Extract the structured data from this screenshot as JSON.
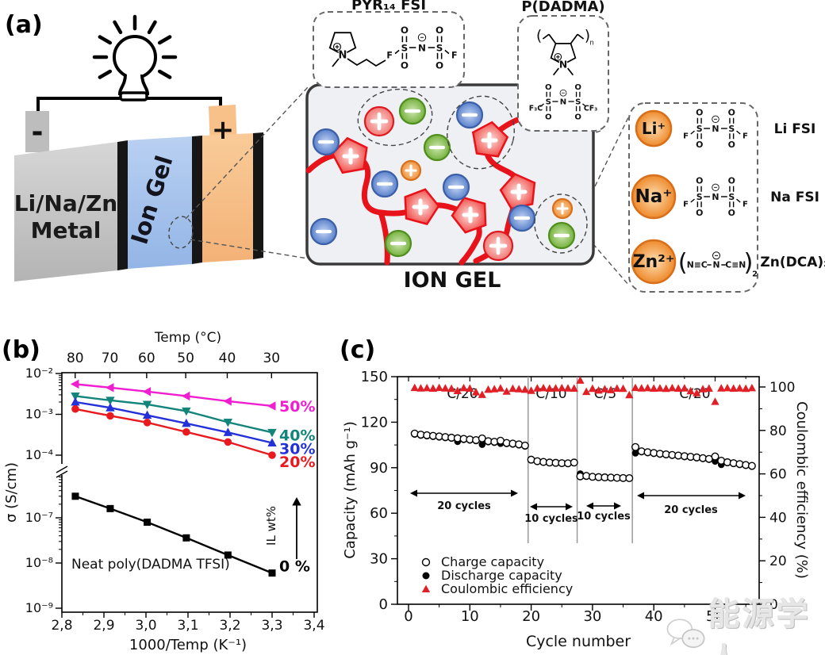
{
  "labels": {
    "a": "(a)",
    "b": "(b)",
    "c": "(c)"
  },
  "watermark": {
    "text": "能源学人"
  },
  "panel_a": {
    "battery": {
      "negative": "-",
      "positive": "+",
      "electrode_line1": "Li/Na/Zn",
      "electrode_line2": "Metal",
      "separator": "Ion Gel"
    },
    "pyr_title": "PYR₁₄ FSI",
    "pdadma_title": "P(DADMA)",
    "iongel_label": "ION GEL",
    "ion_rows": [
      {
        "ion": "Li⁺",
        "label": "Li FSI"
      },
      {
        "ion": "Na⁺",
        "label": "Na FSI"
      },
      {
        "ion": "Zn²⁺",
        "label": "Zn(DCA)₂"
      }
    ],
    "ion_signs": {
      "plus": "+",
      "minus": "−"
    },
    "structures": {
      "atom_o": "O",
      "atom_s": "S",
      "atom_n": "N",
      "fsi_left": "F",
      "fsi_right": "F",
      "tfsi_left": "F₃C",
      "tfsi_right": "CF₃",
      "dca_left": "N≡C",
      "dca_mid": "N",
      "dca_right": "C≡N",
      "dca_sub": "2",
      "polymer_sub": "n",
      "minus": "−",
      "plus": "+"
    }
  },
  "chart_data": [
    {
      "type": "line",
      "panel": "b",
      "xlabel": "1000/Temp (K⁻¹)",
      "ylabel": "σ (S/cm)",
      "top_axis_label": "Temp (°C)",
      "top_ticks": [
        80,
        70,
        60,
        50,
        40,
        30
      ],
      "x_tick_labels": [
        "2,8",
        "2,9",
        "3,0",
        "3,1",
        "3,2",
        "3,3",
        "3,4"
      ],
      "x_tick_values": [
        2.8,
        2.9,
        3.0,
        3.1,
        3.2,
        3.3,
        3.4
      ],
      "xlim": [
        2.8,
        3.4
      ],
      "y_tick_labels_upper": [
        "10⁻²",
        "10⁻³",
        "10⁻⁴"
      ],
      "y_tick_labels_lower": [
        "10⁻⁷",
        "10⁻⁸",
        "10⁻⁹"
      ],
      "axis_break": true,
      "grid": false,
      "x": [
        2.832,
        2.915,
        3.003,
        3.096,
        3.195,
        3.3
      ],
      "series": [
        {
          "name": "50%",
          "color": "#f01ed0",
          "marker": "triangle-left",
          "values": [
            0.0055,
            0.0045,
            0.0036,
            0.0028,
            0.0021,
            0.0016
          ]
        },
        {
          "name": "40%",
          "color": "#13847a",
          "marker": "triangle-down",
          "values": [
            0.0028,
            0.0022,
            0.00175,
            0.0012,
            0.00064,
            0.00036
          ]
        },
        {
          "name": "30%",
          "color": "#2531d8",
          "marker": "triangle-up",
          "values": [
            0.002,
            0.00145,
            0.00095,
            0.0006,
            0.00036,
            0.0002
          ]
        },
        {
          "name": "20%",
          "color": "#e8191f",
          "marker": "circle",
          "values": [
            0.00135,
            0.00092,
            0.00063,
            0.00037,
            0.00021,
            0.0001
          ]
        },
        {
          "name": "0 %",
          "color": "#000000",
          "marker": "square",
          "values": [
            3e-07,
            1.6e-07,
            8e-08,
            3.6e-08,
            1.5e-08,
            6e-09
          ]
        }
      ],
      "annotations": {
        "neat": "Neat poly(DADMA TFSI)",
        "il_axis": "IL wt%"
      }
    },
    {
      "type": "scatter",
      "panel": "c",
      "xlabel": "Cycle number",
      "ylabel_left": "Capacity (mAh g⁻¹)",
      "ylabel_right": "Coulombic efficiency (%)",
      "xlim": [
        0,
        57
      ],
      "ylim_left": [
        0,
        150
      ],
      "ylim_right": [
        0,
        105
      ],
      "x_ticks": [
        0,
        10,
        20,
        30,
        40,
        50
      ],
      "y_ticks_left": [
        0,
        30,
        60,
        90,
        120,
        150
      ],
      "y_ticks_right": [
        0,
        20,
        40,
        60,
        80,
        100
      ],
      "dividers": [
        19.5,
        27.5,
        36.5
      ],
      "stages": [
        {
          "label": "C/20",
          "arrow_label": "20 cycles"
        },
        {
          "label": "C/10",
          "arrow_label": "10 cycles"
        },
        {
          "label": "C/5",
          "arrow_label": "10 cycles"
        },
        {
          "label": "C/20",
          "arrow_label": "20 cycles"
        }
      ],
      "legend": [
        "Charge capacity",
        "Discharge capacity",
        "Coulombic efficiency"
      ],
      "efficiency_color": "#e11f26",
      "cycles_start": 1,
      "charge": [
        112.5,
        111.8,
        111.4,
        111.0,
        110.6,
        110.2,
        109.8,
        109.4,
        109.0,
        108.6,
        108.2,
        109.3,
        107.5,
        107.1,
        107.8,
        106.3,
        105.9,
        105.4,
        104.6,
        95.3,
        94.3,
        93.8,
        93.4,
        93.2,
        93.0,
        92.9,
        93.4,
        84.3,
        84.6,
        84.0,
        83.8,
        83.6,
        83.5,
        83.3,
        83.2,
        83.1,
        103.6,
        100.8,
        100.2,
        99.7,
        99.2,
        98.8,
        98.4,
        98.0,
        97.6,
        97.2,
        96.8,
        96.3,
        95.8,
        97.4,
        94.6,
        93.6,
        93.0,
        92.4,
        91.8,
        91.2
      ],
      "discharge": [
        112.0,
        111.3,
        110.9,
        110.5,
        110.1,
        109.7,
        109.3,
        107.2,
        108.5,
        108.1,
        107.7,
        105.3,
        107.0,
        106.6,
        105.9,
        105.8,
        105.4,
        104.9,
        104.1,
        95.0,
        94.0,
        93.5,
        93.1,
        92.9,
        92.7,
        92.6,
        93.1,
        86.0,
        84.2,
        83.8,
        83.6,
        83.4,
        83.3,
        83.1,
        83.0,
        82.9,
        99.6,
        100.4,
        99.8,
        99.3,
        98.8,
        98.4,
        98.0,
        97.6,
        97.2,
        96.8,
        96.4,
        95.9,
        95.4,
        94.2,
        92.0,
        93.2,
        92.6,
        92.0,
        91.4,
        90.8
      ],
      "efficiency": [
        99.6,
        99.4,
        99.5,
        99.3,
        99.6,
        99.4,
        99.2,
        98.2,
        99.5,
        99.3,
        97.6,
        96.4,
        98.8,
        99.0,
        99.4,
        97.9,
        99.2,
        99.0,
        98.8,
        98.3,
        99.4,
        99.5,
        99.3,
        99.4,
        99.5,
        99.4,
        99.3,
        103.0,
        97.8,
        99.2,
        98.4,
        99.0,
        98.6,
        99.3,
        99.2,
        96.3,
        99.6,
        99.4,
        99.5,
        99.3,
        99.4,
        99.2,
        99.5,
        99.3,
        99.4,
        98.1,
        97.2,
        99.0,
        99.3,
        93.2,
        99.4,
        99.5,
        99.3,
        99.4,
        99.2,
        99.5
      ]
    }
  ]
}
